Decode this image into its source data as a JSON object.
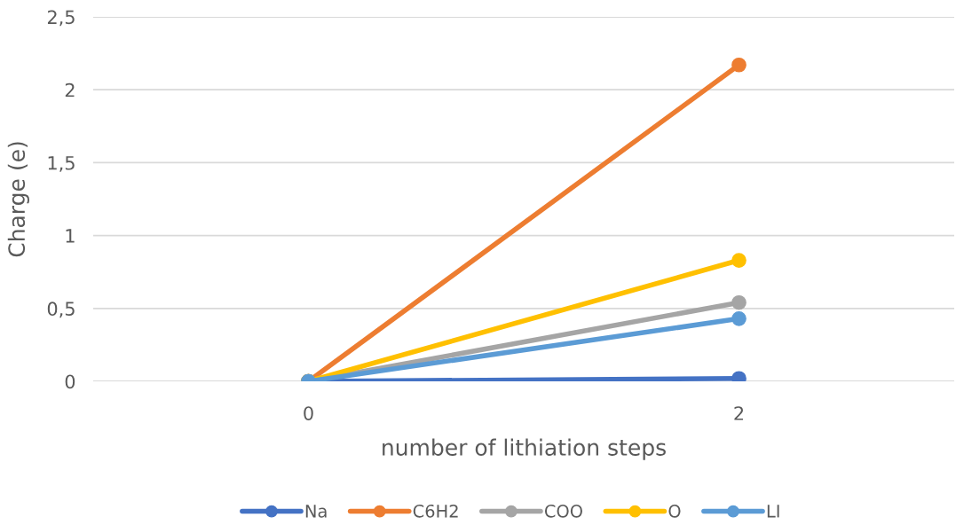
{
  "chart_data": {
    "type": "line",
    "xlabel": "number of lithiation steps",
    "ylabel": "Charge (e)",
    "categories": [
      "0",
      "2"
    ],
    "series": [
      {
        "name": "Na",
        "color": "#4472c4",
        "values": [
          0,
          0.02
        ]
      },
      {
        "name": "C6H2",
        "color": "#ed7d31",
        "values": [
          0,
          2.17
        ]
      },
      {
        "name": "COO",
        "color": "#a5a5a5",
        "values": [
          0,
          0.54
        ]
      },
      {
        "name": "O",
        "color": "#ffc000",
        "values": [
          0,
          0.83
        ]
      },
      {
        "name": "LI",
        "color": "#5b9bd5",
        "values": [
          0,
          0.43
        ]
      }
    ],
    "ylim": [
      0,
      2.5
    ],
    "yticks": [
      0,
      {
        "value": 0.5,
        "label": "0,5"
      },
      1,
      {
        "value": 1.5,
        "label": "1,5"
      },
      2,
      {
        "value": 2.5,
        "label": "2,5"
      }
    ],
    "grid": "y",
    "legend": "bottom",
    "marker": "circle",
    "line_style": "solid"
  }
}
